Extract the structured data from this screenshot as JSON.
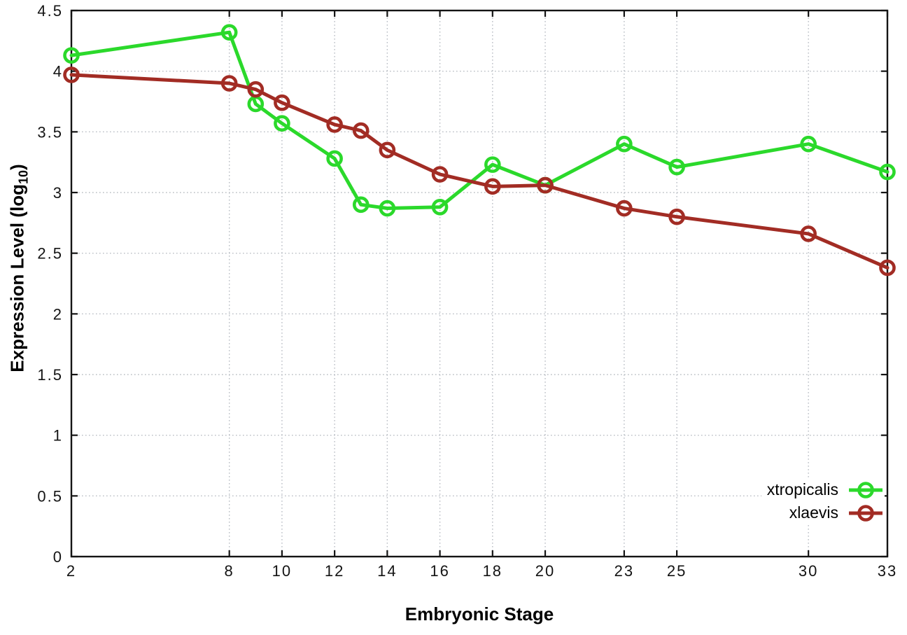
{
  "chart_data": {
    "type": "line",
    "title": "",
    "xlabel": "Embryonic Stage",
    "ylabel": {
      "text": "Expression Level (log",
      "sub": "10",
      "close": ")"
    },
    "xlim": [
      2,
      33
    ],
    "ylim": [
      0,
      4.5
    ],
    "x_ticks": [
      2,
      8,
      10,
      12,
      14,
      16,
      18,
      20,
      23,
      25,
      30,
      33
    ],
    "y_ticks": [
      0,
      0.5,
      1,
      1.5,
      2,
      2.5,
      3,
      3.5,
      4,
      4.5
    ],
    "grid": true,
    "legend_position": "bottom-right-inside",
    "marker": "open-circle",
    "x": [
      2,
      8,
      9,
      10,
      12,
      13,
      14,
      16,
      18,
      20,
      23,
      25,
      30,
      33
    ],
    "series": [
      {
        "name": "xtropicalis",
        "color": "#2bd92b",
        "values": [
          4.13,
          4.32,
          3.73,
          3.57,
          3.28,
          2.9,
          2.87,
          2.88,
          3.23,
          3.06,
          3.4,
          3.21,
          3.4,
          3.17
        ]
      },
      {
        "name": "xlaevis",
        "color": "#a22c24",
        "values": [
          3.97,
          3.9,
          3.85,
          3.74,
          3.56,
          3.51,
          3.35,
          3.15,
          3.05,
          3.06,
          2.87,
          2.8,
          2.66,
          2.38
        ]
      }
    ],
    "colors": {
      "border": "#141414",
      "grid": "#b9bdc4",
      "text": "#141414"
    }
  }
}
